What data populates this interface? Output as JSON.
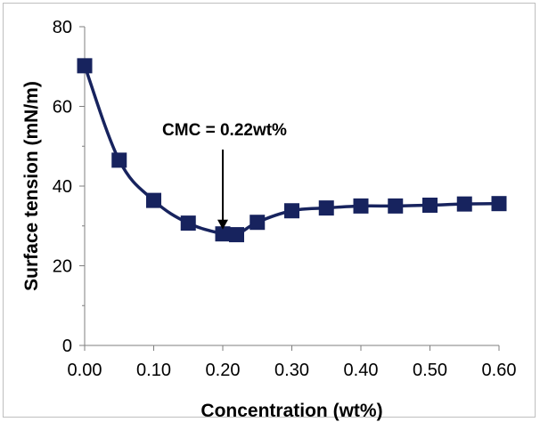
{
  "chart_data": {
    "type": "line",
    "xlabel": "Concentration (wt%)",
    "ylabel": "Surface tension (mN/m)",
    "xlim": [
      0,
      0.6
    ],
    "ylim": [
      0,
      80
    ],
    "x_ticks": [
      "0.00",
      "0.10",
      "0.20",
      "0.30",
      "0.40",
      "0.50",
      "0.60"
    ],
    "y_ticks": [
      "0",
      "20",
      "40",
      "60",
      "80"
    ],
    "grid": false,
    "legend": "none",
    "series": [
      {
        "color": "#17235e",
        "marker": "square",
        "smooth": true,
        "x": [
          0.0,
          0.05,
          0.1,
          0.15,
          0.2,
          0.22,
          0.25,
          0.3,
          0.35,
          0.4,
          0.45,
          0.5,
          0.55,
          0.6
        ],
        "y": [
          70.2,
          46.5,
          36.4,
          30.7,
          28.0,
          27.8,
          30.9,
          33.8,
          34.5,
          35.0,
          35.0,
          35.2,
          35.5,
          35.6
        ]
      }
    ],
    "annotations": [
      {
        "text": "CMC = 0.22wt%",
        "arrow_to_x": 0.2,
        "arrow_to_y": 28.0
      }
    ]
  }
}
